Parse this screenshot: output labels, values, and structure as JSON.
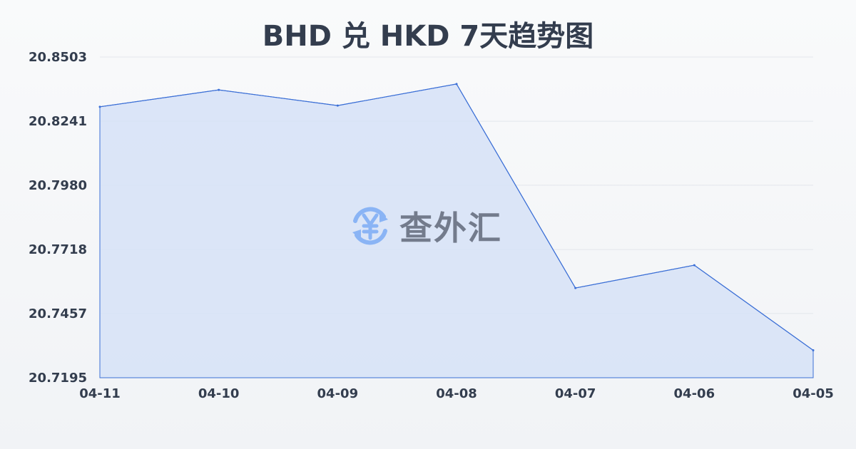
{
  "title": "BHD 兑 HKD 7天趋势图",
  "watermark": {
    "text": "查外汇",
    "icon": "yen-exchange-icon",
    "icon_color": "#8ab4f5"
  },
  "chart_data": {
    "type": "area",
    "title": "BHD 兑 HKD 7天趋势图",
    "categories": [
      "04-11",
      "04-10",
      "04-09",
      "04-08",
      "04-07",
      "04-06",
      "04-05"
    ],
    "values": [
      20.83,
      20.8369,
      20.8305,
      20.8393,
      20.7561,
      20.7654,
      20.7307
    ],
    "ylim": [
      20.7195,
      20.8503
    ],
    "yticks": [
      "20.8503",
      "20.8241",
      "20.7980",
      "20.7718",
      "20.7457",
      "20.7195"
    ],
    "grid": true,
    "line_color": "#3b6fd6",
    "fill_color": "#d6e2f7"
  }
}
